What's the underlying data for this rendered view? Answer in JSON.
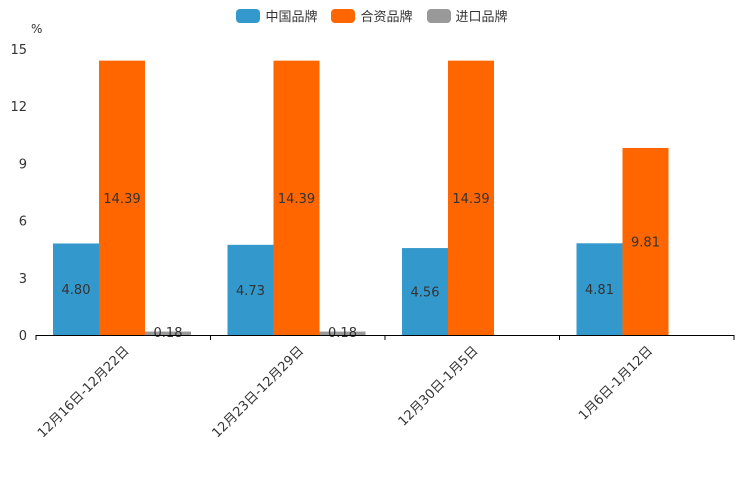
{
  "chart_data": {
    "type": "bar",
    "title": "",
    "xlabel": "",
    "ylabel": "%",
    "ylim": [
      0,
      15
    ],
    "yticks": [
      0,
      3,
      6,
      9,
      12,
      15
    ],
    "categories": [
      "12月16日-12月22日",
      "12月23日-12月29日",
      "12月30日-1月5日",
      "1月6日-1月12日"
    ],
    "series": [
      {
        "name": "中国品牌",
        "color": "#3399cc",
        "values": [
          4.8,
          4.73,
          4.56,
          4.81
        ],
        "labels": [
          "4.80",
          "4.73",
          "4.56",
          "4.81"
        ]
      },
      {
        "name": "合资品牌",
        "color": "#ff6600",
        "values": [
          14.39,
          14.39,
          14.39,
          9.81
        ],
        "labels": [
          "14.39",
          "14.39",
          "14.39",
          "9.81"
        ]
      },
      {
        "name": "进口品牌",
        "color": "#999999",
        "values": [
          0.18,
          0.18,
          null,
          null
        ],
        "labels": [
          "0.18",
          "0.18",
          null,
          null
        ]
      }
    ],
    "legend_position": "top-center",
    "grid": false
  }
}
